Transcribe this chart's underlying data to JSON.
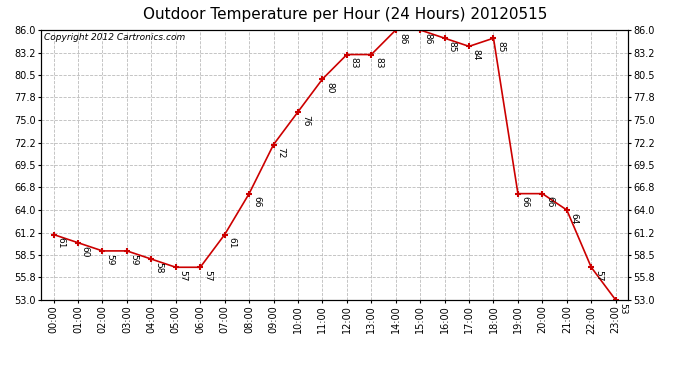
{
  "title": "Outdoor Temperature per Hour (24 Hours) 20120515",
  "copyright_text": "Copyright 2012 Cartronics.com",
  "hours": [
    "00:00",
    "01:00",
    "02:00",
    "03:00",
    "04:00",
    "05:00",
    "06:00",
    "07:00",
    "08:00",
    "09:00",
    "10:00",
    "11:00",
    "12:00",
    "13:00",
    "14:00",
    "15:00",
    "16:00",
    "17:00",
    "18:00",
    "19:00",
    "20:00",
    "21:00",
    "22:00",
    "23:00"
  ],
  "temperatures": [
    61,
    60,
    59,
    59,
    58,
    57,
    57,
    61,
    66,
    72,
    76,
    80,
    83,
    83,
    86,
    86,
    85,
    84,
    85,
    66,
    66,
    64,
    57,
    53
  ],
  "line_color": "#cc0000",
  "marker": "+",
  "marker_size": 5,
  "marker_color": "#cc0000",
  "bg_color": "#ffffff",
  "grid_color": "#bbbbbb",
  "yticks": [
    53.0,
    55.8,
    58.5,
    61.2,
    64.0,
    66.8,
    69.5,
    72.2,
    75.0,
    77.8,
    80.5,
    83.2,
    86.0
  ],
  "title_fontsize": 11,
  "tick_fontsize": 7,
  "annotation_fontsize": 6.5,
  "copyright_fontsize": 6.5
}
